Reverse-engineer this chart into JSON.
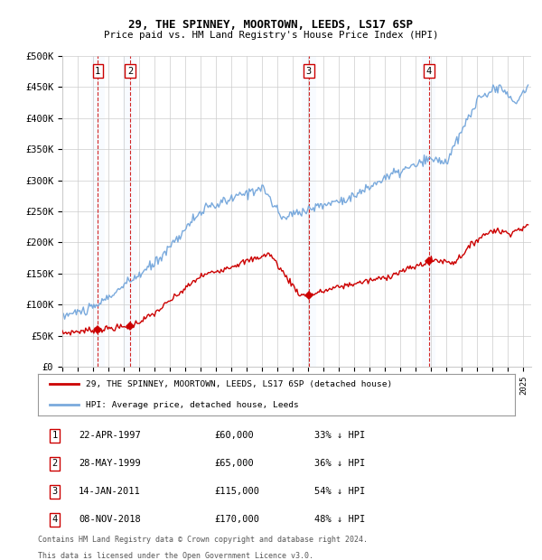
{
  "title1": "29, THE SPINNEY, MOORTOWN, LEEDS, LS17 6SP",
  "title2": "Price paid vs. HM Land Registry's House Price Index (HPI)",
  "ylim": [
    0,
    500000
  ],
  "yticks": [
    0,
    50000,
    100000,
    150000,
    200000,
    250000,
    300000,
    350000,
    400000,
    450000,
    500000
  ],
  "ytick_labels": [
    "£0",
    "£50K",
    "£100K",
    "£150K",
    "£200K",
    "£250K",
    "£300K",
    "£350K",
    "£400K",
    "£450K",
    "£500K"
  ],
  "x_start_year": 1995,
  "x_end_year": 2025,
  "hpi_color": "#7aaadd",
  "price_color": "#cc0000",
  "sale_marker_color": "#cc0000",
  "dashed_line_color": "#cc0000",
  "shade_color": "#ddeeff",
  "grid_color": "#cccccc",
  "background_color": "#ffffff",
  "sale_years_float": [
    1997.31,
    1999.41,
    2011.04,
    2018.85
  ],
  "sale_prices": [
    60000,
    65000,
    115000,
    170000
  ],
  "sale_labels": [
    "1",
    "2",
    "3",
    "4"
  ],
  "legend_line1": "29, THE SPINNEY, MOORTOWN, LEEDS, LS17 6SP (detached house)",
  "legend_line2": "HPI: Average price, detached house, Leeds",
  "table": [
    {
      "num": "1",
      "date": "22-APR-1997",
      "price": "£60,000",
      "pct": "33% ↓ HPI"
    },
    {
      "num": "2",
      "date": "28-MAY-1999",
      "price": "£65,000",
      "pct": "36% ↓ HPI"
    },
    {
      "num": "3",
      "date": "14-JAN-2011",
      "price": "£115,000",
      "pct": "54% ↓ HPI"
    },
    {
      "num": "4",
      "date": "08-NOV-2018",
      "price": "£170,000",
      "pct": "48% ↓ HPI"
    }
  ],
  "footnote1": "Contains HM Land Registry data © Crown copyright and database right 2024.",
  "footnote2": "This data is licensed under the Open Government Licence v3.0."
}
